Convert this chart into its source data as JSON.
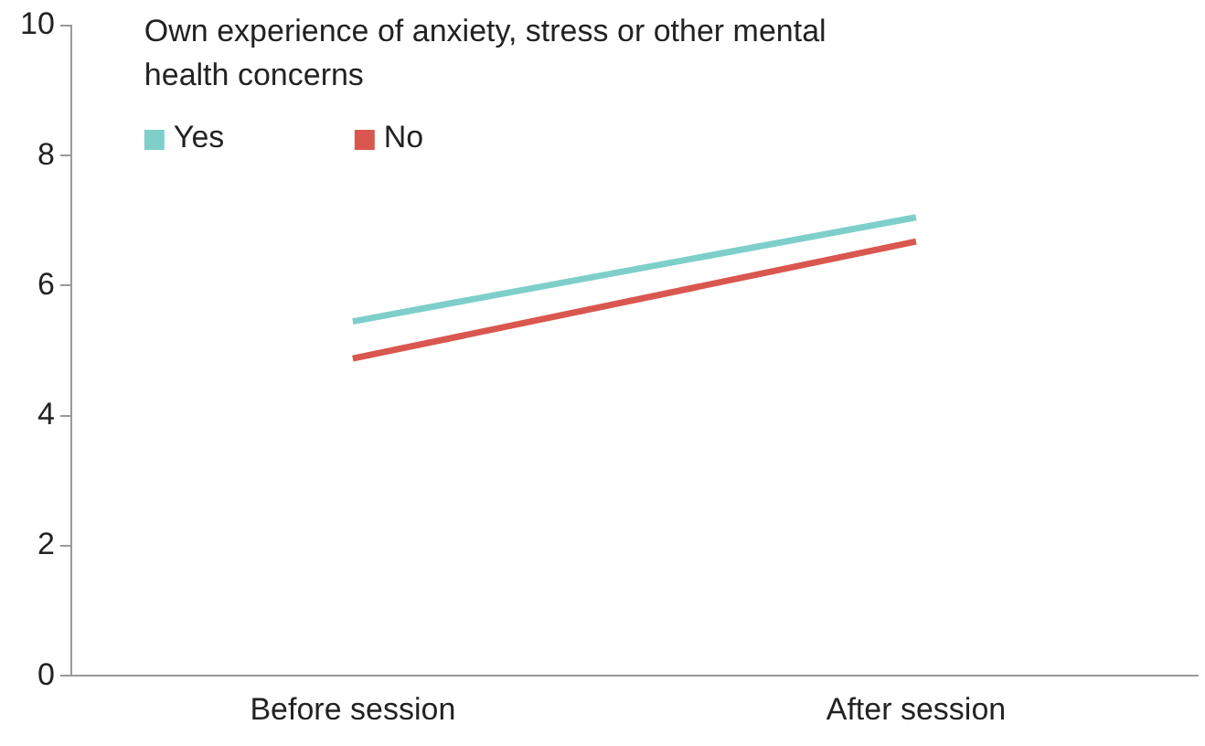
{
  "chart_data": {
    "type": "line",
    "legend_title": "Own experience of anxiety, stress or other mental health concerns",
    "categories": [
      "Before session",
      "After session"
    ],
    "series": [
      {
        "name": "Yes",
        "color": "#7ecfca",
        "values": [
          5.45,
          7.05
        ]
      },
      {
        "name": "No",
        "color": "#d9574f",
        "values": [
          4.88,
          6.68
        ]
      }
    ],
    "ylim": [
      0,
      10
    ],
    "yticks": [
      0,
      2,
      4,
      6,
      8,
      10
    ],
    "grid": false,
    "legend": "top left",
    "marker": "none",
    "line_style": "solid"
  }
}
